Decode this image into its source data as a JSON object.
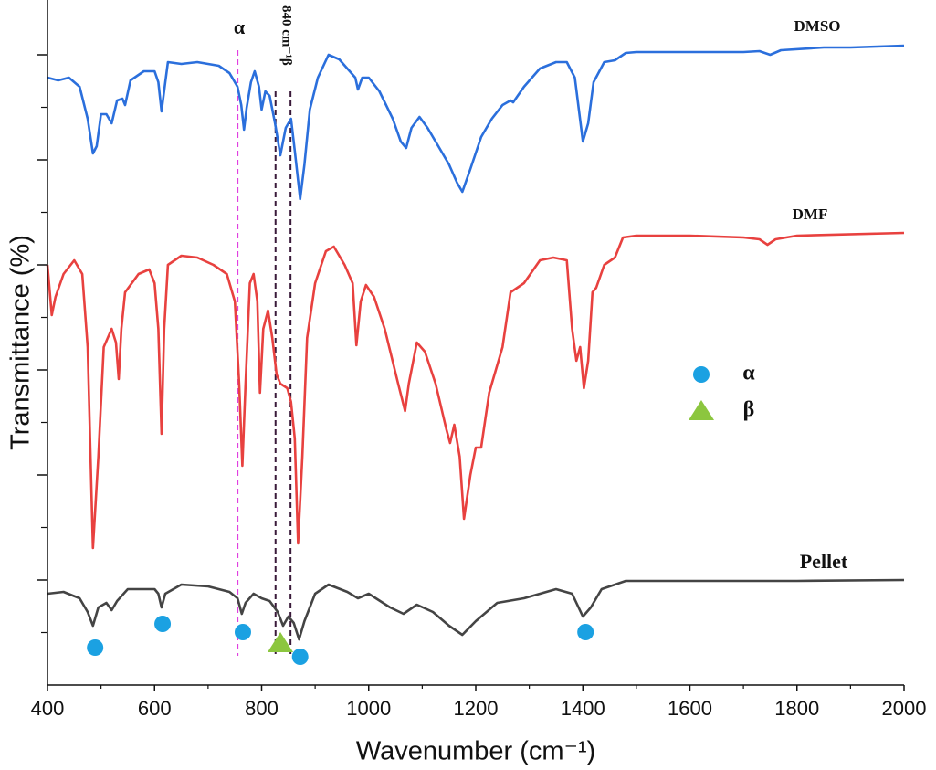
{
  "chart_data": {
    "type": "line",
    "xlabel": "Wavenumber (cm⁻¹)",
    "ylabel": "Transmittance (%)",
    "xlim": [
      400,
      2000
    ],
    "xticks": [
      400,
      600,
      800,
      1000,
      1200,
      1400,
      1600,
      1800,
      2000
    ],
    "xminor_ticks": [
      500,
      700,
      900,
      1100,
      1300,
      1500,
      1700,
      1900
    ],
    "ylim": [
      0,
      750
    ],
    "yticks": [
      115,
      230,
      345,
      460,
      575,
      690
    ],
    "yminor_ticks": [
      57.5,
      172.5,
      287.5,
      402.5,
      517.5,
      632.5
    ],
    "show_ytick_labels": false,
    "series": [
      {
        "name": "DMSO",
        "color": "#2b6fdc",
        "x": [
          400,
          420,
          440,
          460,
          475,
          485,
          492,
          500,
          510,
          520,
          530,
          540,
          545,
          555,
          580,
          600,
          607,
          613,
          620,
          625,
          650,
          680,
          700,
          720,
          740,
          755,
          762,
          767,
          772,
          780,
          787,
          795,
          800,
          807,
          815,
          825,
          835,
          845,
          855,
          862,
          872,
          880,
          890,
          905,
          925,
          945,
          960,
          975,
          980,
          988,
          1000,
          1020,
          1045,
          1060,
          1070,
          1080,
          1095,
          1110,
          1130,
          1150,
          1165,
          1175,
          1190,
          1210,
          1230,
          1250,
          1265,
          1270,
          1290,
          1320,
          1350,
          1370,
          1385,
          1400,
          1410,
          1420,
          1440,
          1460,
          1480,
          1500,
          1600,
          1700,
          1730,
          1750,
          1770,
          1850,
          1900,
          2000
        ],
        "values": [
          665,
          662,
          665,
          655,
          620,
          582,
          590,
          625,
          625,
          615,
          640,
          642,
          635,
          662,
          672,
          672,
          660,
          628,
          660,
          682,
          680,
          682,
          680,
          678,
          670,
          655,
          635,
          608,
          632,
          660,
          672,
          655,
          630,
          650,
          645,
          615,
          580,
          610,
          620,
          585,
          532,
          570,
          630,
          665,
          690,
          685,
          675,
          665,
          652,
          665,
          665,
          650,
          620,
          595,
          588,
          610,
          622,
          610,
          590,
          570,
          550,
          540,
          565,
          600,
          620,
          635,
          640,
          638,
          655,
          675,
          682,
          682,
          665,
          595,
          615,
          660,
          682,
          684,
          692,
          693,
          693,
          693,
          694,
          690,
          695,
          698,
          698,
          700
        ]
      },
      {
        "name": "DMF",
        "color": "#e8413f",
        "x": [
          400,
          408,
          415,
          430,
          450,
          465,
          475,
          485,
          495,
          505,
          520,
          528,
          533,
          538,
          545,
          570,
          590,
          600,
          607,
          613,
          618,
          625,
          650,
          680,
          710,
          735,
          750,
          758,
          764,
          770,
          778,
          785,
          792,
          797,
          803,
          812,
          820,
          828,
          835,
          848,
          855,
          862,
          868,
          876,
          885,
          900,
          920,
          935,
          955,
          970,
          977,
          985,
          995,
          1010,
          1030,
          1055,
          1068,
          1075,
          1090,
          1105,
          1125,
          1145,
          1152,
          1160,
          1170,
          1178,
          1190,
          1200,
          1210,
          1225,
          1250,
          1265,
          1290,
          1320,
          1345,
          1370,
          1380,
          1388,
          1395,
          1402,
          1410,
          1418,
          1425,
          1440,
          1460,
          1475,
          1500,
          1600,
          1700,
          1730,
          1745,
          1760,
          1800,
          2000
        ],
        "values": [
          460,
          405,
          425,
          450,
          465,
          450,
          370,
          150,
          250,
          370,
          390,
          375,
          335,
          390,
          430,
          450,
          455,
          440,
          390,
          275,
          390,
          460,
          470,
          468,
          460,
          450,
          420,
          330,
          240,
          330,
          440,
          450,
          420,
          320,
          390,
          410,
          380,
          340,
          330,
          325,
          310,
          270,
          155,
          250,
          380,
          440,
          475,
          480,
          460,
          440,
          372,
          420,
          438,
          425,
          390,
          330,
          300,
          330,
          375,
          365,
          330,
          280,
          265,
          285,
          250,
          182,
          230,
          260,
          260,
          320,
          370,
          430,
          440,
          465,
          468,
          465,
          390,
          355,
          370,
          325,
          355,
          430,
          435,
          460,
          468,
          490,
          492,
          492,
          490,
          488,
          482,
          488,
          492,
          495
        ]
      },
      {
        "name": "Pellet",
        "color": "#444444",
        "x": [
          400,
          430,
          460,
          475,
          485,
          495,
          510,
          520,
          530,
          550,
          600,
          607,
          613,
          620,
          650,
          700,
          740,
          755,
          763,
          770,
          785,
          800,
          815,
          830,
          840,
          850,
          860,
          870,
          880,
          900,
          925,
          960,
          980,
          1000,
          1040,
          1065,
          1090,
          1120,
          1150,
          1175,
          1200,
          1240,
          1290,
          1350,
          1380,
          1400,
          1415,
          1435,
          1480,
          1600,
          1800,
          2000
        ],
        "values": [
          100,
          102,
          95,
          80,
          65,
          85,
          90,
          82,
          92,
          105,
          105,
          100,
          85,
          100,
          110,
          108,
          102,
          95,
          78,
          90,
          100,
          95,
          92,
          80,
          65,
          75,
          68,
          50,
          70,
          100,
          110,
          102,
          95,
          100,
          85,
          78,
          88,
          80,
          65,
          55,
          70,
          90,
          95,
          105,
          100,
          75,
          85,
          105,
          114,
          114,
          114,
          115
        ]
      }
    ],
    "markers": [
      {
        "name": "α",
        "shape": "circle",
        "color": "#1ba1e2",
        "x": [
          489,
          615,
          765,
          872,
          1405
        ],
        "y": [
          41,
          67,
          58,
          31,
          58
        ]
      },
      {
        "name": "β",
        "shape": "triangle",
        "color": "#8cc63f",
        "x": [
          835
        ],
        "y": [
          46
        ]
      }
    ],
    "reference_lines": [
      {
        "x": 755,
        "color": "#e040e0"
      },
      {
        "x": 826,
        "color": "#3a1a3a"
      },
      {
        "x": 854,
        "color": "#3a1a3a"
      }
    ],
    "annotations": [
      "α",
      "840 cm⁻¹β"
    ]
  }
}
